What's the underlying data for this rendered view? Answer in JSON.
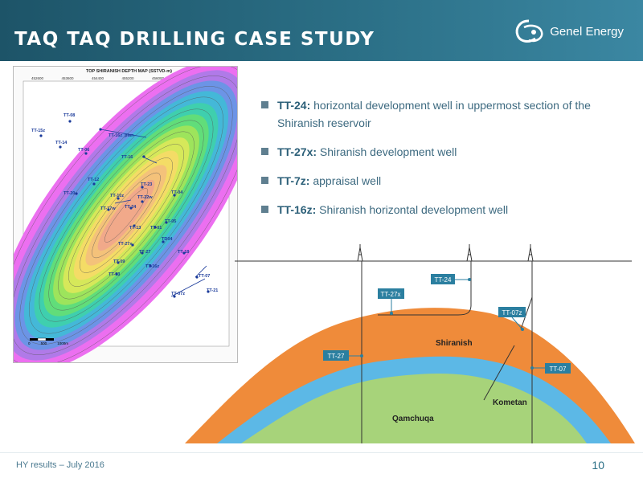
{
  "header": {
    "title": "TAQ TAQ DRILLING CASE STUDY",
    "logo_text": "Genel Energy"
  },
  "map": {
    "title": "TOP SHIRANISH DEPTH MAP (SSTVD-m)",
    "x_ticks": [
      "452600",
      "453600",
      "454400",
      "455200",
      "456000",
      "457600",
      "458400"
    ],
    "wells": [
      "TT-08",
      "TT-15z",
      "TT-14",
      "TT-06",
      "TT-16z_plan",
      "TT-16",
      "TT-12",
      "TT-23",
      "TT-20",
      "TT-10z",
      "TT-22w",
      "TT-04",
      "TT-17w",
      "TT-24",
      "TT-13",
      "TT-01",
      "TT-05",
      "TT-27x",
      "TT-27",
      "TD04",
      "TT-18",
      "TT-09",
      "TT-03",
      "TT-16z",
      "TT-07",
      "TT-07z",
      "TT-21"
    ],
    "scale_labels": [
      "0",
      "500",
      "1000m"
    ]
  },
  "bullets": [
    {
      "bold": "TT-24:",
      "text": " horizontal development well in uppermost section of the Shiranish reservoir"
    },
    {
      "bold": "TT-27x:",
      "text": " Shiranish development well"
    },
    {
      "bold": "TT-7z:",
      "text": " appraisal well"
    },
    {
      "bold": "TT-16z:",
      "text": " Shiranish horizontal development well"
    }
  ],
  "cross_section": {
    "well_labels": [
      "TT-24",
      "TT-27x",
      "TT-07z",
      "TT-27",
      "TT-07"
    ],
    "formations": [
      "Shiranish",
      "Kometan",
      "Qamchuqa"
    ],
    "colors": {
      "shiranish": "#ef8b3a",
      "kometan": "#5cb8e6",
      "qamchuqa": "#a7d37a",
      "label_box": "#2b7fa0"
    }
  },
  "footer": {
    "text": "HY results – July 2016",
    "page": "10"
  }
}
